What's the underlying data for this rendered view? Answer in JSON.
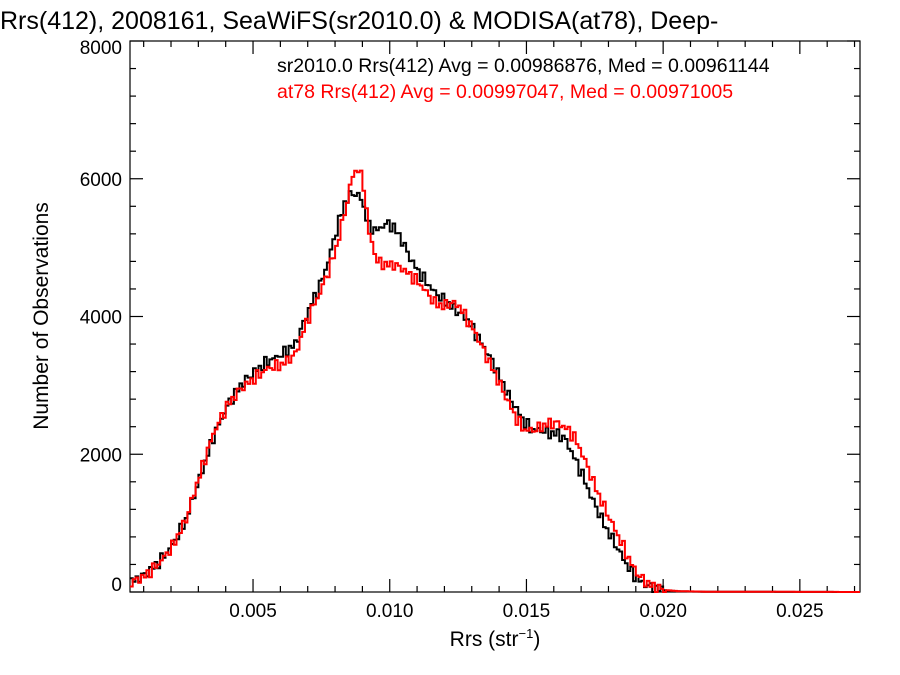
{
  "chart_data": {
    "type": "line",
    "title": "Rrs(412), 2008161, SeaWiFS(sr2010.0) & MODISA(at78), Deep-",
    "xlabel": "Rrs (str",
    "xlabel_sup": "−1",
    "xlabel_close": ")",
    "ylabel": "Number of Observations",
    "xlim": [
      0.0005,
      0.0272
    ],
    "ylim": [
      0,
      8000
    ],
    "x_ticks": [
      {
        "value": 0.005,
        "label": "0.005"
      },
      {
        "value": 0.01,
        "label": "0.010"
      },
      {
        "value": 0.015,
        "label": "0.015"
      },
      {
        "value": 0.02,
        "label": "0.020"
      },
      {
        "value": 0.025,
        "label": "0.025"
      }
    ],
    "y_ticks": [
      {
        "value": 0,
        "label": "0"
      },
      {
        "value": 2000,
        "label": "2000"
      },
      {
        "value": 4000,
        "label": "4000"
      },
      {
        "value": 6000,
        "label": "6000"
      },
      {
        "value": 8000,
        "label": "8000"
      }
    ],
    "grid": false,
    "legend_position": "top-right",
    "series": [
      {
        "name": "sr2010.0",
        "legend_text": "sr2010.0 Rrs(412) Avg = 0.00986876, Med = 0.00961144",
        "color": "#000000",
        "points": [
          [
            0.0005,
            150
          ],
          [
            0.001,
            250
          ],
          [
            0.0015,
            430
          ],
          [
            0.002,
            680
          ],
          [
            0.0025,
            1050
          ],
          [
            0.003,
            1650
          ],
          [
            0.0035,
            2250
          ],
          [
            0.004,
            2700
          ],
          [
            0.0045,
            3000
          ],
          [
            0.005,
            3200
          ],
          [
            0.0055,
            3350
          ],
          [
            0.006,
            3450
          ],
          [
            0.0065,
            3600
          ],
          [
            0.0068,
            3900
          ],
          [
            0.0071,
            4200
          ],
          [
            0.0074,
            4450
          ],
          [
            0.0077,
            4800
          ],
          [
            0.008,
            5250
          ],
          [
            0.0083,
            5650
          ],
          [
            0.0086,
            5800
          ],
          [
            0.0089,
            5720
          ],
          [
            0.0092,
            5300
          ],
          [
            0.0095,
            5250
          ],
          [
            0.0098,
            5350
          ],
          [
            0.0101,
            5300
          ],
          [
            0.0104,
            5100
          ],
          [
            0.0107,
            4850
          ],
          [
            0.011,
            4650
          ],
          [
            0.0113,
            4500
          ],
          [
            0.0116,
            4350
          ],
          [
            0.0119,
            4250
          ],
          [
            0.0122,
            4150
          ],
          [
            0.0125,
            4050
          ],
          [
            0.0128,
            3950
          ],
          [
            0.0131,
            3750
          ],
          [
            0.0134,
            3550
          ],
          [
            0.0137,
            3350
          ],
          [
            0.014,
            3100
          ],
          [
            0.0143,
            2850
          ],
          [
            0.0146,
            2650
          ],
          [
            0.0149,
            2450
          ],
          [
            0.0152,
            2350
          ],
          [
            0.0155,
            2350
          ],
          [
            0.0158,
            2300
          ],
          [
            0.0161,
            2300
          ],
          [
            0.0164,
            2200
          ],
          [
            0.0167,
            1950
          ],
          [
            0.017,
            1700
          ],
          [
            0.0173,
            1400
          ],
          [
            0.0176,
            1150
          ],
          [
            0.0179,
            900
          ],
          [
            0.0182,
            700
          ],
          [
            0.0185,
            480
          ],
          [
            0.0188,
            280
          ],
          [
            0.0191,
            160
          ],
          [
            0.0194,
            90
          ],
          [
            0.0197,
            45
          ],
          [
            0.02,
            25
          ],
          [
            0.0205,
            10
          ],
          [
            0.0215,
            4
          ],
          [
            0.0272,
            0
          ]
        ]
      },
      {
        "name": "at78",
        "legend_text": "at78 Rrs(412) Avg = 0.00997047, Med = 0.00971005",
        "color": "#ff0000",
        "points": [
          [
            0.0005,
            140
          ],
          [
            0.001,
            230
          ],
          [
            0.0015,
            410
          ],
          [
            0.002,
            660
          ],
          [
            0.0025,
            1050
          ],
          [
            0.003,
            1700
          ],
          [
            0.0035,
            2300
          ],
          [
            0.004,
            2700
          ],
          [
            0.0045,
            2950
          ],
          [
            0.005,
            3100
          ],
          [
            0.0055,
            3250
          ],
          [
            0.006,
            3300
          ],
          [
            0.0065,
            3450
          ],
          [
            0.0068,
            3800
          ],
          [
            0.0071,
            4100
          ],
          [
            0.0074,
            4350
          ],
          [
            0.0077,
            4650
          ],
          [
            0.008,
            5000
          ],
          [
            0.0083,
            5500
          ],
          [
            0.0086,
            6050
          ],
          [
            0.0088,
            6150
          ],
          [
            0.009,
            5900
          ],
          [
            0.0092,
            5200
          ],
          [
            0.0095,
            4800
          ],
          [
            0.0098,
            4750
          ],
          [
            0.0101,
            4750
          ],
          [
            0.0104,
            4700
          ],
          [
            0.0107,
            4600
          ],
          [
            0.011,
            4500
          ],
          [
            0.0113,
            4350
          ],
          [
            0.0116,
            4200
          ],
          [
            0.0119,
            4150
          ],
          [
            0.0122,
            4200
          ],
          [
            0.0125,
            4150
          ],
          [
            0.0128,
            3950
          ],
          [
            0.0131,
            3750
          ],
          [
            0.0134,
            3500
          ],
          [
            0.0137,
            3250
          ],
          [
            0.014,
            3000
          ],
          [
            0.0143,
            2750
          ],
          [
            0.0146,
            2500
          ],
          [
            0.0149,
            2350
          ],
          [
            0.0152,
            2350
          ],
          [
            0.0155,
            2400
          ],
          [
            0.0158,
            2450
          ],
          [
            0.0161,
            2450
          ],
          [
            0.0164,
            2380
          ],
          [
            0.0167,
            2250
          ],
          [
            0.017,
            2000
          ],
          [
            0.0173,
            1700
          ],
          [
            0.0176,
            1400
          ],
          [
            0.0179,
            1150
          ],
          [
            0.0182,
            900
          ],
          [
            0.0185,
            650
          ],
          [
            0.0188,
            400
          ],
          [
            0.0191,
            220
          ],
          [
            0.0194,
            120
          ],
          [
            0.0197,
            60
          ],
          [
            0.02,
            30
          ],
          [
            0.0205,
            12
          ],
          [
            0.0215,
            5
          ],
          [
            0.0272,
            0
          ]
        ]
      }
    ]
  }
}
